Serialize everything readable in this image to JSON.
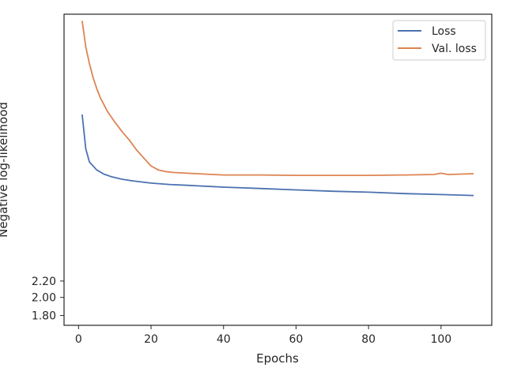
{
  "chart_data": {
    "type": "line",
    "title": "",
    "xlabel": "Epochs",
    "ylabel": "Negative log-likelihood",
    "xlim": [
      -4,
      114
    ],
    "ylim": [
      1.7,
      10.4
    ],
    "y_scale": "log",
    "x_ticks": [
      0,
      20,
      40,
      60,
      80,
      100
    ],
    "y_ticks_visible": [
      1.8,
      2.0,
      2.2
    ],
    "y_ticks_visible_labels": [
      "1.80",
      "2.00",
      "2.20"
    ],
    "grid": false,
    "legend_position": "top-right",
    "series": [
      {
        "name": "Loss",
        "color": "#4c72b0",
        "x": [
          1,
          2,
          3,
          5,
          7,
          9,
          12,
          15,
          20,
          25,
          30,
          40,
          50,
          60,
          70,
          80,
          90,
          100,
          109
        ],
        "y": [
          5.8,
          4.75,
          4.4,
          4.2,
          4.1,
          4.04,
          3.98,
          3.94,
          3.89,
          3.86,
          3.84,
          3.8,
          3.77,
          3.74,
          3.71,
          3.69,
          3.66,
          3.64,
          3.62
        ]
      },
      {
        "name": "Val. loss",
        "color": "#dd8452",
        "x": [
          1,
          2,
          3,
          4,
          5,
          6,
          8,
          10,
          12,
          14,
          16,
          18,
          20,
          22,
          24,
          26,
          30,
          40,
          50,
          60,
          70,
          80,
          90,
          98,
          100,
          102,
          109
        ],
        "y": [
          10.0,
          8.6,
          7.8,
          7.2,
          6.75,
          6.4,
          5.9,
          5.55,
          5.25,
          5.0,
          4.72,
          4.5,
          4.3,
          4.2,
          4.16,
          4.14,
          4.12,
          4.08,
          4.08,
          4.07,
          4.07,
          4.07,
          4.08,
          4.09,
          4.12,
          4.09,
          4.11
        ]
      }
    ]
  }
}
